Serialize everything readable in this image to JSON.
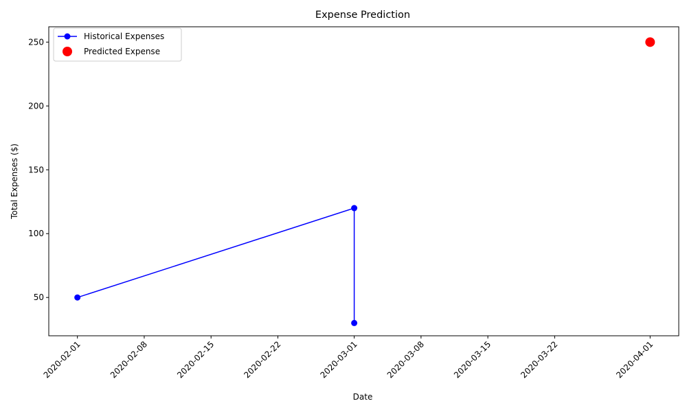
{
  "chart_data": {
    "type": "line",
    "title": "Expense Prediction",
    "xlabel": "Date",
    "ylabel": "Total Expenses ($)",
    "x_ticks": [
      "2020-02-01",
      "2020-02-08",
      "2020-02-15",
      "2020-02-22",
      "2020-03-01",
      "2020-03-08",
      "2020-03-15",
      "2020-03-22",
      "2020-04-01"
    ],
    "y_ticks": [
      50,
      100,
      150,
      200,
      250
    ],
    "xlim": [
      "2020-01-29",
      "2020-04-04"
    ],
    "ylim": [
      20,
      262
    ],
    "grid": false,
    "legend": "top-left",
    "series": [
      {
        "name": "Historical Expenses",
        "kind": "line-marker",
        "color": "#0000ff",
        "points": [
          {
            "x": "2020-02-01",
            "y": 50
          },
          {
            "x": "2020-03-01",
            "y": 120
          },
          {
            "x": "2020-03-01",
            "y": 30
          }
        ]
      },
      {
        "name": "Predicted Expense",
        "kind": "scatter",
        "color": "#ff0000",
        "points": [
          {
            "x": "2020-04-01",
            "y": 250
          }
        ]
      }
    ]
  }
}
